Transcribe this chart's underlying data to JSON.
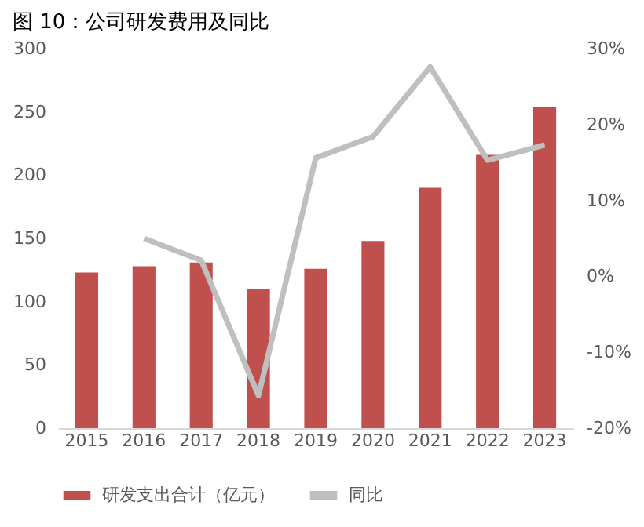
{
  "chart_data": {
    "type": "bar",
    "title": "图 10：公司研发费用及同比",
    "categories": [
      "2015",
      "2016",
      "2017",
      "2018",
      "2019",
      "2020",
      "2021",
      "2022",
      "2023"
    ],
    "series": [
      {
        "name": "研发支出合计（亿元）",
        "color": "#c0504d",
        "values": [
          123,
          128,
          131,
          110,
          126,
          148,
          190,
          216,
          254
        ]
      },
      {
        "name": "同比",
        "color": "#bfbfbf",
        "type": "line",
        "axis": "y2",
        "values": [
          null,
          5.0,
          2.1,
          -15.7,
          15.6,
          18.4,
          27.6,
          15.3,
          17.3
        ]
      }
    ],
    "ylim": [
      0,
      300
    ],
    "yticks": [
      0,
      50,
      100,
      150,
      200,
      250,
      300
    ],
    "y2lim": [
      -20,
      30
    ],
    "y2ticks": [
      {
        "value": -20,
        "label": "-20%"
      },
      {
        "value": -10,
        "label": "-10%"
      },
      {
        "value": 0,
        "label": "0%"
      },
      {
        "value": 10,
        "label": "10%"
      },
      {
        "value": 20,
        "label": "20%"
      },
      {
        "value": 30,
        "label": "30%"
      }
    ],
    "legend": "bottom",
    "grid": false,
    "marker": "none",
    "line_style": "solid"
  }
}
